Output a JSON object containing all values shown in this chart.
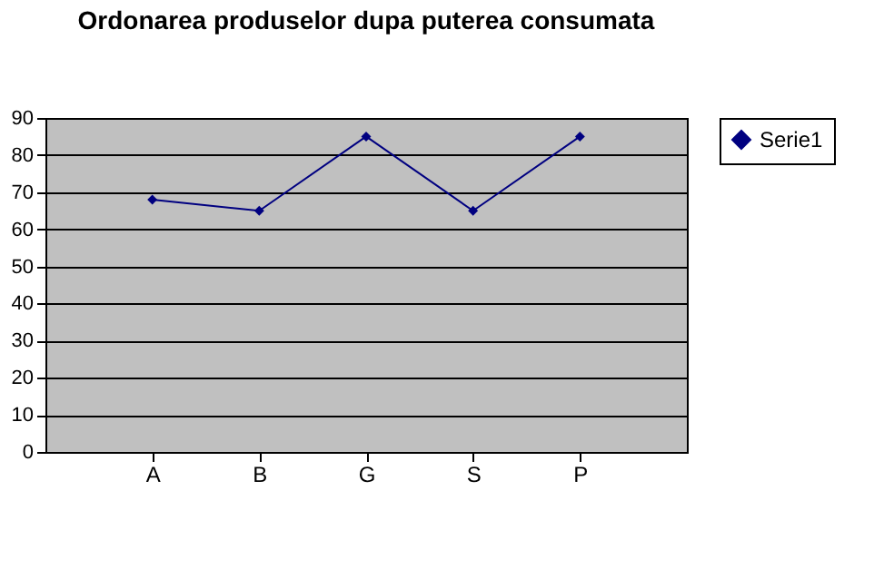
{
  "chart_data": {
    "type": "line",
    "title": "Ordonarea produselor dupa puterea consumata",
    "categories": [
      "A",
      "B",
      "G",
      "S",
      "P"
    ],
    "series": [
      {
        "name": "Serie1",
        "color": "#000080",
        "values": [
          68,
          65,
          85,
          65,
          85
        ]
      }
    ],
    "ylim": [
      0,
      90
    ],
    "yticks": [
      0,
      10,
      20,
      30,
      40,
      50,
      60,
      70,
      80,
      90
    ],
    "grid": "y",
    "legend": "right",
    "marker": "diamond",
    "line_style": "solid"
  }
}
